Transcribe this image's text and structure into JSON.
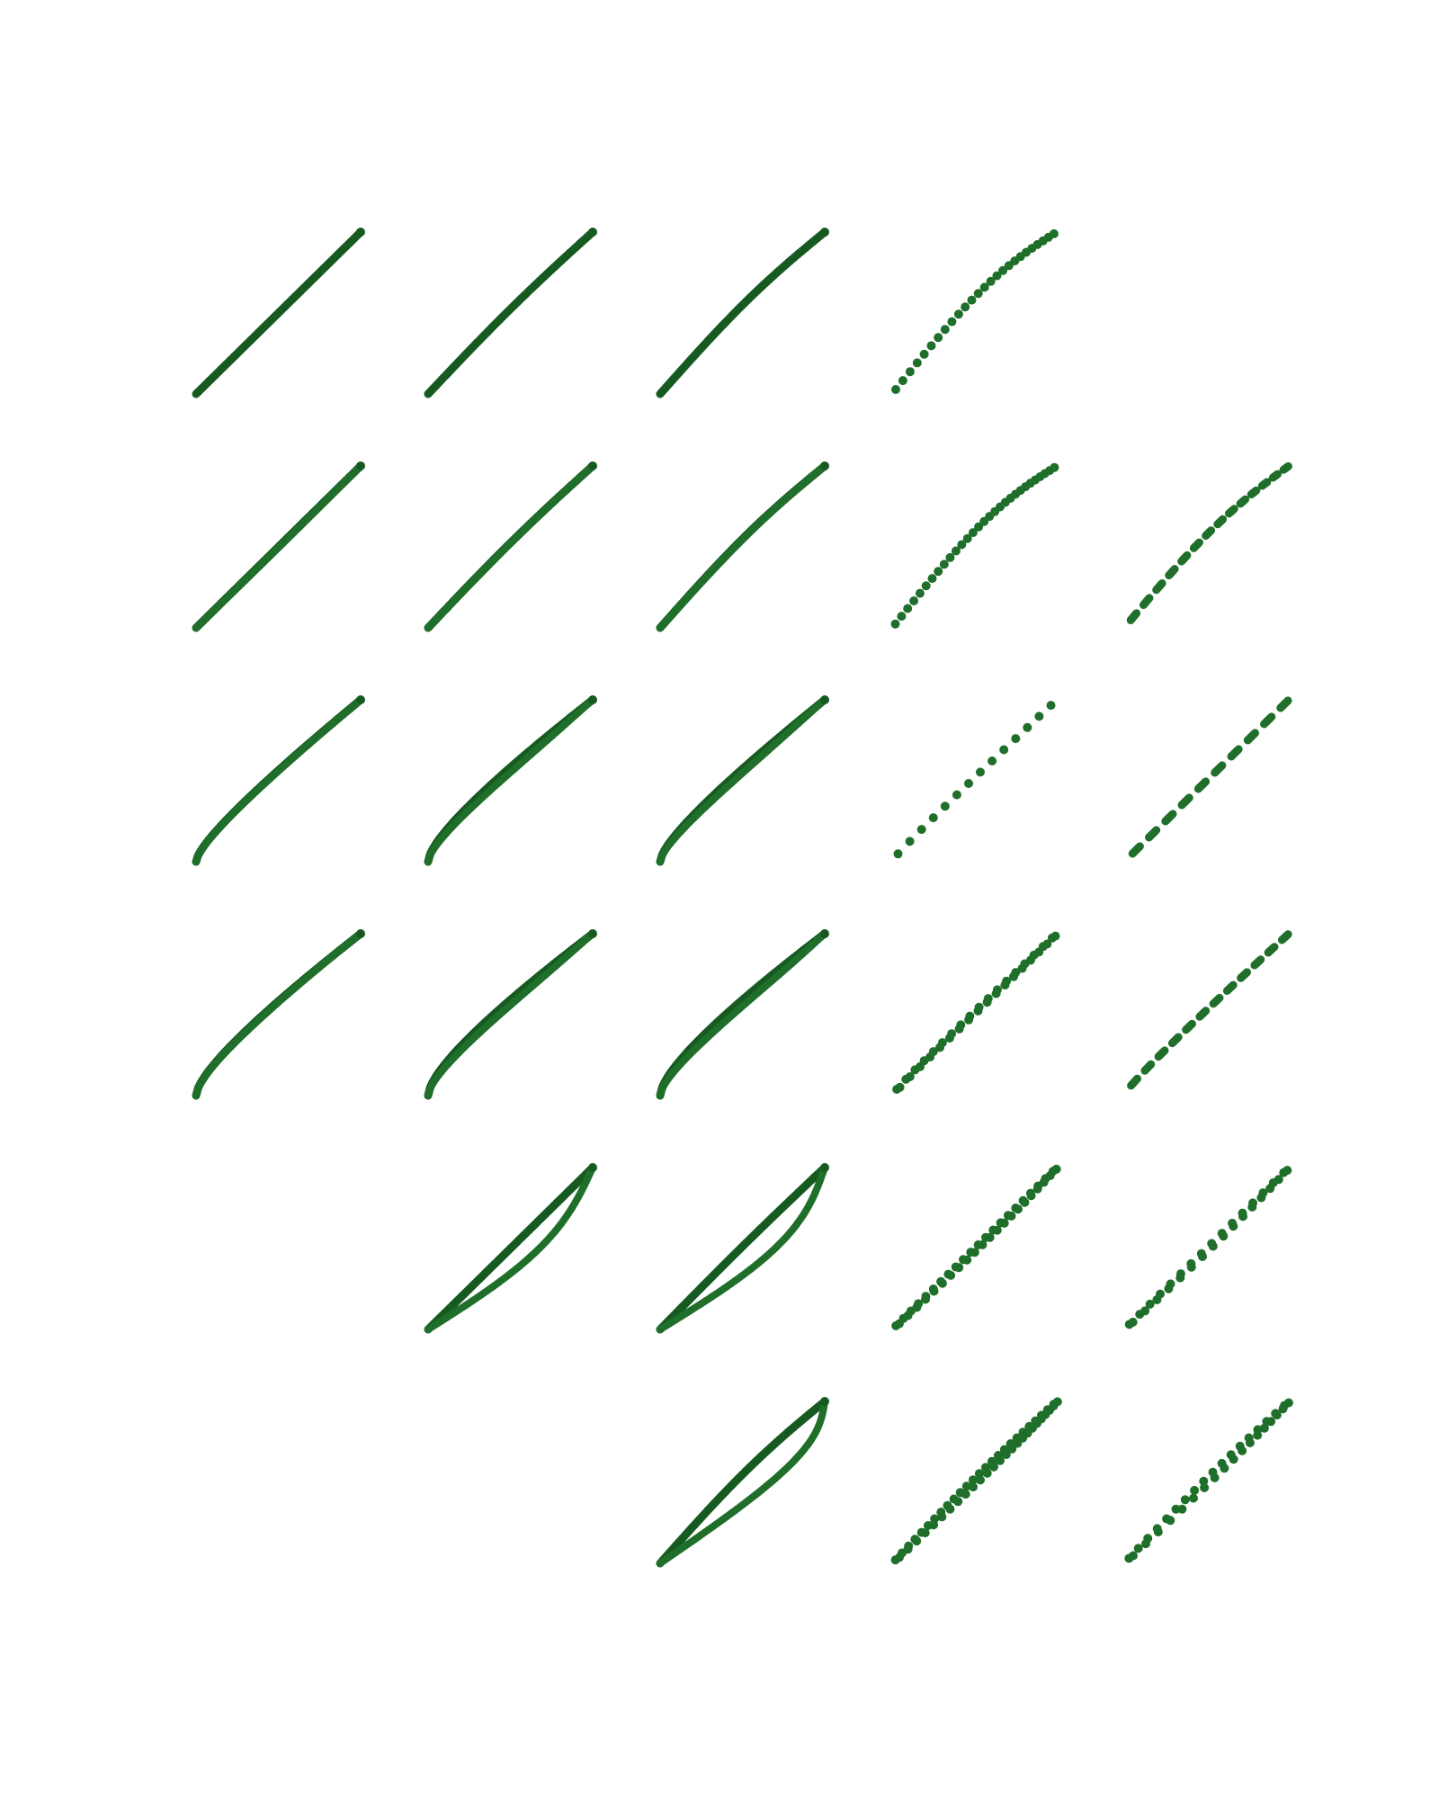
{
  "colors": {
    "background": "#ffffff",
    "curve": "#1f6f2b",
    "curve_edge": "#165a21"
  },
  "chart_data": {
    "type": "line",
    "title": "",
    "xlabel": "",
    "ylabel": "",
    "grid": false,
    "legend": "none",
    "layout_note": "",
    "panels": [
      {
        "row": 0,
        "col": 0,
        "style": "solid",
        "shape": "arc",
        "bulge": 0.0,
        "spread": 0.0,
        "n": 0,
        "pitch": 0
      },
      {
        "row": 0,
        "col": 1,
        "style": "solid",
        "shape": "arc",
        "bulge": -0.1,
        "spread": 0.0,
        "n": 0,
        "pitch": 0
      },
      {
        "row": 0,
        "col": 2,
        "style": "solid",
        "shape": "arc",
        "bulge": -0.2,
        "spread": 0.0,
        "n": 0,
        "pitch": 0
      },
      {
        "row": 0,
        "col": 3,
        "style": "dots",
        "shape": "arc",
        "bulge": -0.4,
        "spread": 0.0,
        "n": 26,
        "pitch": 0
      },
      {
        "row": 1,
        "col": 0,
        "style": "solid",
        "shape": "arc",
        "bulge": 0.0,
        "spread": 0.03,
        "n": 0,
        "pitch": 0
      },
      {
        "row": 1,
        "col": 1,
        "style": "solid",
        "shape": "arc",
        "bulge": -0.1,
        "spread": 0.02,
        "n": 0,
        "pitch": 0
      },
      {
        "row": 1,
        "col": 2,
        "style": "solid",
        "shape": "arc",
        "bulge": -0.2,
        "spread": 0.02,
        "n": 0,
        "pitch": 0
      },
      {
        "row": 1,
        "col": 3,
        "style": "dots",
        "shape": "arc",
        "bulge": -0.4,
        "spread": 0.0,
        "n": 30,
        "pitch": 0
      },
      {
        "row": 1,
        "col": 4,
        "style": "dashes",
        "shape": "arc",
        "bulge": -0.3,
        "spread": 0.0,
        "n": 14,
        "pitch": 0
      },
      {
        "row": 2,
        "col": 0,
        "style": "solid",
        "shape": "arc",
        "bulge": 0.35,
        "spread": 0.03,
        "n": 0,
        "pitch": 0
      },
      {
        "row": 2,
        "col": 1,
        "style": "solid",
        "shape": "loop",
        "bulge": 0.45,
        "spread": 0.22,
        "n": 0,
        "pitch": 0
      },
      {
        "row": 2,
        "col": 2,
        "style": "solid",
        "shape": "loop",
        "bulge": 0.4,
        "spread": 0.18,
        "n": 0,
        "pitch": 0
      },
      {
        "row": 2,
        "col": 3,
        "style": "dots",
        "shape": "arc",
        "bulge": 0.1,
        "spread": 0.0,
        "n": 14,
        "pitch": 0
      },
      {
        "row": 2,
        "col": 4,
        "style": "dashes",
        "shape": "arc",
        "bulge": 0.0,
        "spread": 0.0,
        "n": 10,
        "pitch": 0
      },
      {
        "row": 3,
        "col": 0,
        "style": "solid",
        "shape": "arc",
        "bulge": 0.45,
        "spread": 0.05,
        "n": 0,
        "pitch": 0
      },
      {
        "row": 3,
        "col": 1,
        "style": "solid",
        "shape": "loop",
        "bulge": 0.5,
        "spread": 0.25,
        "n": 0,
        "pitch": 0
      },
      {
        "row": 3,
        "col": 2,
        "style": "solid",
        "shape": "loop",
        "bulge": 0.5,
        "spread": 0.3,
        "n": 0,
        "pitch": 0
      },
      {
        "row": 3,
        "col": 3,
        "style": "pairs",
        "shape": "arc",
        "bulge": 0.1,
        "spread": 0.06,
        "n": 18,
        "pitch": 0
      },
      {
        "row": 3,
        "col": 4,
        "style": "dashes",
        "shape": "arc",
        "bulge": 0.15,
        "spread": 0.0,
        "n": 12,
        "pitch": 0
      },
      {
        "row": 4,
        "col": 1,
        "style": "solid",
        "shape": "loop",
        "bulge": 0.0,
        "spread": 0.25,
        "n": 0,
        "pitch": 0.25
      },
      {
        "row": 4,
        "col": 2,
        "style": "solid",
        "shape": "loop",
        "bulge": -0.05,
        "spread": 0.3,
        "n": 0,
        "pitch": 0.3
      },
      {
        "row": 4,
        "col": 3,
        "style": "pairs",
        "shape": "arc",
        "bulge": 0.0,
        "spread": 0.1,
        "n": 22,
        "pitch": 0.1
      },
      {
        "row": 4,
        "col": 4,
        "style": "pairs",
        "shape": "arc",
        "bulge": 0.0,
        "spread": 0.1,
        "n": 16,
        "pitch": 0.1
      },
      {
        "row": 5,
        "col": 2,
        "style": "solid",
        "shape": "loop",
        "bulge": -0.2,
        "spread": 0.4,
        "n": 0,
        "pitch": 0.3
      },
      {
        "row": 5,
        "col": 3,
        "style": "pairs",
        "shape": "arc",
        "bulge": -0.1,
        "spread": 0.2,
        "n": 26,
        "pitch": 0.15
      },
      {
        "row": 5,
        "col": 4,
        "style": "pairs",
        "shape": "arc",
        "bulge": -0.1,
        "spread": 0.2,
        "n": 18,
        "pitch": 0.15
      }
    ]
  }
}
